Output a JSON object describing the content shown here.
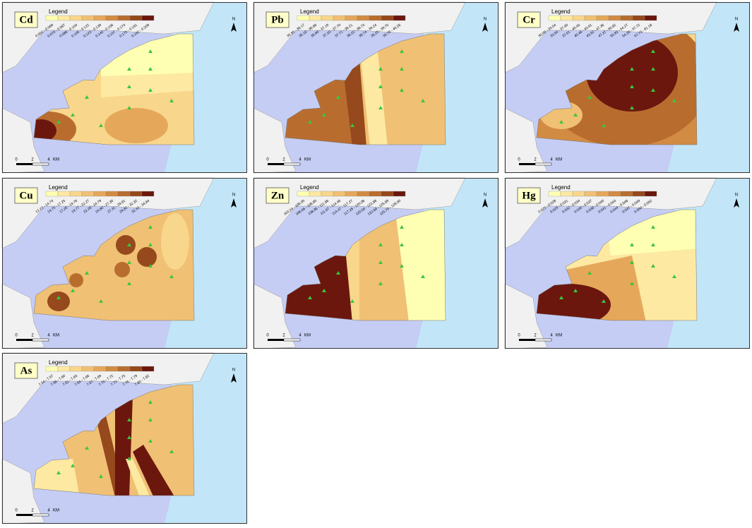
{
  "class_colors": [
    "#ffffb4",
    "#fde9a2",
    "#f8d68c",
    "#f0c074",
    "#e5a85b",
    "#d18b43",
    "#b86d2f",
    "#95491c",
    "#6b170e"
  ],
  "panels": [
    {
      "element": "Cd",
      "legend_title": "Legend",
      "classes": [
        "0.052 - 0.069",
        "0.070 - 0.087",
        "0.088 - 0.104",
        "0.105 - 0.122",
        "0.123 - 0.139",
        "0.140 - 0.156",
        "0.157 - 0.174",
        "0.175 - 0.191",
        "0.192 - 0.209"
      ],
      "scale_labels": [
        "0",
        "2",
        "4",
        "KM"
      ],
      "north_label": "N"
    },
    {
      "element": "Pb",
      "legend_title": "Legend",
      "classes": [
        "35.85 - 36.17",
        "36.18 - 36.68",
        "36.69 - 37.19",
        "37.20 - 37.70",
        "37.71 - 38.21",
        "38.22 - 38.73",
        "38.74 - 39.24",
        "39.25 - 39.75",
        "39.76 - 40.26"
      ],
      "scale_labels": [
        "0",
        "2",
        "4",
        "KM"
      ],
      "north_label": "N"
    },
    {
      "element": "Cr",
      "legend_title": "Legend",
      "classes": [
        "30.09 - 33.54",
        "33.55 - 37.00",
        "37.01 - 40.45",
        "40.46 - 43.91",
        "43.92 - 47.36",
        "47.37 - 50.82",
        "50.83 - 54.27",
        "54.28 - 57.72",
        "57.73 - 61.18"
      ],
      "scale_labels": [
        "0",
        "2",
        "4",
        "KM"
      ],
      "north_label": "N"
    },
    {
      "element": "Cu",
      "legend_title": "Legend",
      "classes": [
        "12.23 - 14.74",
        "14.75 - 17.25",
        "17.26 - 19.76",
        "19.77 - 22.27",
        "22.28 - 24.79",
        "24.80 - 27.30",
        "27.31 - 29.81",
        "29.82 - 32.32",
        "32.33 - 34.84"
      ],
      "scale_labels": [
        "0",
        "2",
        "4",
        "KM"
      ],
      "north_label": "N"
    },
    {
      "element": "Zn",
      "legend_title": "Legend",
      "classes": [
        "103.24 - 106.05",
        "106.06 - 108.85",
        "108.86 - 111.66",
        "111.67 - 114.46",
        "114.47 - 117.27",
        "117.28 - 120.08",
        "120.09 - 122.88",
        "122.89 - 125.69",
        "125.70 - 128.50"
      ],
      "scale_labels": [
        "0",
        "2",
        "4",
        "KM"
      ],
      "north_label": "N"
    },
    {
      "element": "Hg",
      "legend_title": "Legend",
      "classes": [
        "0.025 - 0.028",
        "0.029 - 0.031",
        "0.032 - 0.034",
        "0.035 - 0.037",
        "0.038 - 0.040",
        "0.041 - 0.043",
        "0.044 - 0.046",
        "0.047 - 0.049",
        "0.050 - 0.052"
      ],
      "scale_labels": [
        "0",
        "2",
        "4",
        "KM"
      ],
      "north_label": "N"
    },
    {
      "element": "As",
      "legend_title": "Legend",
      "classes": [
        "7.54 - 7.57",
        "7.58 - 7.60",
        "7.61 - 7.63",
        "7.64 - 7.66",
        "7.67 - 7.69",
        "7.70 - 7.72",
        "7.73 - 7.75",
        "7.76 - 7.79",
        "7.80 - 7.82"
      ],
      "scale_labels": [
        "0",
        "2",
        "4",
        "KM"
      ],
      "north_label": "N"
    }
  ]
}
